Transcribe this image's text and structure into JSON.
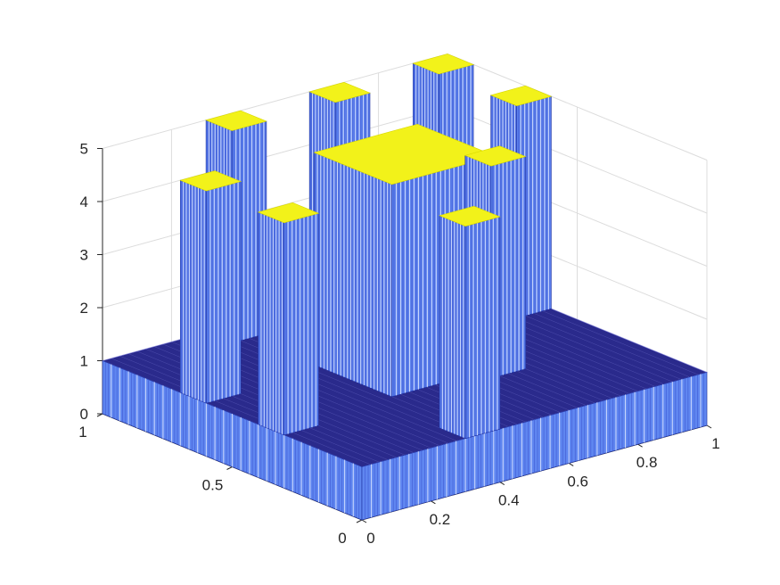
{
  "chart_data": {
    "type": "surface-3d",
    "title": "",
    "xlabel": "",
    "ylabel": "",
    "zlabel": "",
    "xlim": [
      0,
      1
    ],
    "ylim": [
      0,
      1
    ],
    "zlim": [
      0,
      5
    ],
    "grid": true,
    "x_ticks": [
      {
        "value": 0,
        "label": "0"
      },
      {
        "value": 0.2,
        "label": "0.2"
      },
      {
        "value": 0.4,
        "label": "0.4"
      },
      {
        "value": 0.6,
        "label": "0.6"
      },
      {
        "value": 0.8,
        "label": "0.8"
      },
      {
        "value": 1,
        "label": "1"
      }
    ],
    "y_ticks": [
      {
        "value": 0,
        "label": "0"
      },
      {
        "value": 0.5,
        "label": "0.5"
      },
      {
        "value": 1,
        "label": "1"
      }
    ],
    "z_ticks": [
      {
        "value": 0,
        "label": "0"
      },
      {
        "value": 1,
        "label": "1"
      },
      {
        "value": 2,
        "label": "2"
      },
      {
        "value": 3,
        "label": "3"
      },
      {
        "value": 4,
        "label": "4"
      },
      {
        "value": 5,
        "label": "5"
      }
    ],
    "base": {
      "x": [
        0,
        1
      ],
      "y": [
        0,
        1
      ],
      "z": 1
    },
    "pillars": [
      {
        "x": [
          0.3,
          0.4
        ],
        "y": [
          0.9,
          1.0
        ],
        "z": 5
      },
      {
        "x": [
          0.6,
          0.7
        ],
        "y": [
          0.9,
          1.0
        ],
        "z": 5
      },
      {
        "x": [
          0.9,
          1.0
        ],
        "y": [
          0.9,
          1.0
        ],
        "z": 5
      },
      {
        "x": [
          0.0,
          0.1
        ],
        "y": [
          0.6,
          0.7
        ],
        "z": 5
      },
      {
        "x": [
          0.35,
          0.65
        ],
        "y": [
          0.35,
          0.65
        ],
        "z": 5
      },
      {
        "x": [
          0.9,
          1.0
        ],
        "y": [
          0.6,
          0.7
        ],
        "z": 5
      },
      {
        "x": [
          0.0,
          0.1
        ],
        "y": [
          0.3,
          0.4
        ],
        "z": 5
      },
      {
        "x": [
          0.6,
          0.7
        ],
        "y": [
          0.3,
          0.4
        ],
        "z": 5
      },
      {
        "x": [
          0.3,
          0.4
        ],
        "y": [
          0.0,
          0.1
        ],
        "z": 5
      }
    ],
    "colors": {
      "top": "#f2f21a",
      "side_light": "#5f86f0",
      "side_dark": "#2336b8",
      "stripe_light": "#d8e2ff",
      "floor": "#2a2a8c",
      "floor_light": "#8c8ce6"
    }
  }
}
